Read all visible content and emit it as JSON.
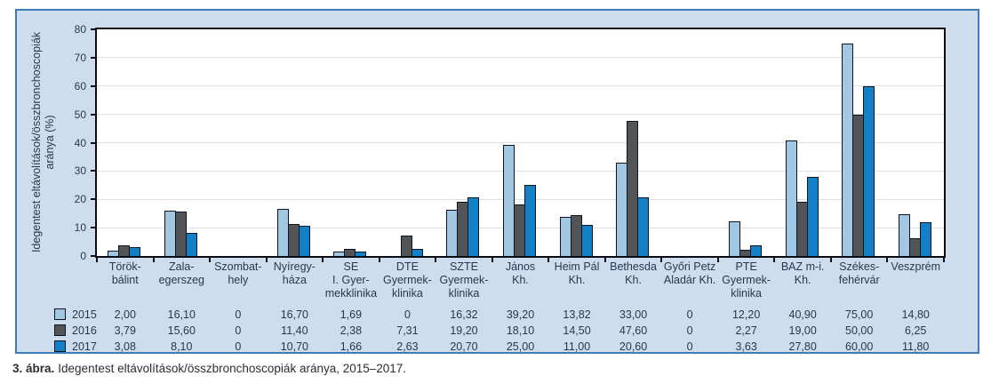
{
  "figure": {
    "caption_label": "3. ábra.",
    "caption_text": "Idegentest eltávolítások/összbronchoscopiák aránya, 2015–2017."
  },
  "chart_data": {
    "type": "bar",
    "title": "",
    "xlabel": "",
    "ylabel": "Idegentest eltávolítások/összbronchoscopiák aránya (%)",
    "ylabel_lines": [
      "Idegentest eltávolítások/összbronchoscopiák",
      "aránya (%)"
    ],
    "ylim": [
      0,
      80
    ],
    "ytick_step": 10,
    "grid": true,
    "legend_position": "bottom-left-table",
    "categories": [
      "Törökbálint",
      "Zalaegerszeg",
      "Szombathely",
      "Nyíregyháza",
      "SE I. Gyermekklinika",
      "DTE Gyermekklinika",
      "SZTE Gyermekklinika",
      "János Kh.",
      "Heim Pál Kh.",
      "Bethesda Kh.",
      "Győri Petz Aladár Kh.",
      "PTE Gyermekklinika",
      "BAZ m-i. Kh.",
      "Székesfehérvár",
      "Veszprém"
    ],
    "category_label_lines": [
      [
        "Török-",
        "bálint"
      ],
      [
        "Zala-",
        "egerszeg"
      ],
      [
        "Szombat-",
        "hely"
      ],
      [
        "Nyíregy-",
        "háza"
      ],
      [
        "SE",
        "I. Gyer-",
        "mekklinika"
      ],
      [
        "DTE",
        "Gyermek-",
        "klinika"
      ],
      [
        "SZTE",
        "Gyermek-",
        "klinika"
      ],
      [
        "János",
        "Kh."
      ],
      [
        "Heim Pál",
        "Kh."
      ],
      [
        "Bethesda",
        "Kh."
      ],
      [
        "Győri Petz",
        "Aladár Kh."
      ],
      [
        "PTE",
        "Gyermek-",
        "klinika"
      ],
      [
        "BAZ m-i.",
        "Kh."
      ],
      [
        "Székes-",
        "fehérvár"
      ],
      [
        "Veszprém"
      ]
    ],
    "series": [
      {
        "name": "2015",
        "color": "#a2c7e2",
        "values": [
          2.0,
          16.1,
          0,
          16.7,
          1.69,
          0,
          16.32,
          39.2,
          13.82,
          33.0,
          0,
          12.2,
          40.9,
          75.0,
          14.8
        ],
        "display_values": [
          "2,00",
          "16,10",
          "0",
          "16,70",
          "1,69",
          "0",
          "16,32",
          "39,20",
          "13,82",
          "33,00",
          "0",
          "12,20",
          "40,90",
          "75,00",
          "14,80"
        ]
      },
      {
        "name": "2016",
        "color": "#525458",
        "values": [
          3.79,
          15.6,
          0,
          11.4,
          2.38,
          7.31,
          19.2,
          18.1,
          14.5,
          47.6,
          0,
          2.27,
          19.0,
          50.0,
          6.25
        ],
        "display_values": [
          "3,79",
          "15,60",
          "0",
          "11,40",
          "2,38",
          "7,31",
          "19,20",
          "18,10",
          "14,50",
          "47,60",
          "0",
          "2,27",
          "19,00",
          "50,00",
          "6,25"
        ]
      },
      {
        "name": "2017",
        "color": "#1280c6",
        "values": [
          3.08,
          8.1,
          0,
          10.7,
          1.66,
          2.63,
          20.7,
          25.0,
          11.0,
          20.6,
          0,
          3.63,
          27.8,
          60.0,
          11.8
        ],
        "display_values": [
          "3,08",
          "8,10",
          "0",
          "10,70",
          "1,66",
          "2,63",
          "20,70",
          "25,00",
          "11,00",
          "20,60",
          "0",
          "3,63",
          "27,80",
          "60,00",
          "11,80"
        ]
      }
    ]
  }
}
